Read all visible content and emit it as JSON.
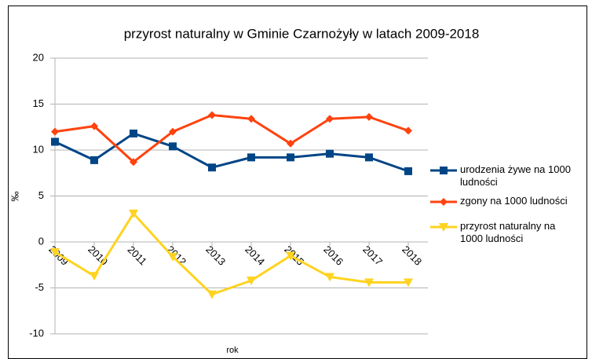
{
  "chart_data": {
    "type": "line",
    "title": "przyrost naturalny w Gminie Czarnożyły w latach 2009-2018",
    "x_label": "rok",
    "y_label": "‰",
    "categories": [
      "2009",
      "2010",
      "2011",
      "2012",
      "2013",
      "2014",
      "2015",
      "2016",
      "2017",
      "2018"
    ],
    "series": [
      {
        "name": "urodzenia żywe na 1000 ludności",
        "color": "#004586",
        "marker": "square",
        "values": [
          10.9,
          8.9,
          11.8,
          10.4,
          8.1,
          9.2,
          9.2,
          9.6,
          9.2,
          7.7
        ]
      },
      {
        "name": "zgony na 1000 ludności",
        "color": "#ff420e",
        "marker": "diamond",
        "values": [
          12.0,
          12.6,
          8.7,
          12.0,
          13.8,
          13.4,
          10.7,
          13.4,
          13.6,
          12.1
        ]
      },
      {
        "name": "przyrost naturalny na 1000 ludności",
        "color": "#ffd320",
        "marker": "triangle-down",
        "values": [
          -1.1,
          -3.7,
          3.1,
          -1.6,
          -5.7,
          -4.2,
          -1.5,
          -3.8,
          -4.4,
          -4.4
        ]
      }
    ],
    "ylim": [
      -10,
      20
    ],
    "yticks": [
      -10,
      -5,
      0,
      5,
      10,
      15,
      20
    ],
    "grid": true,
    "legend": "right"
  }
}
